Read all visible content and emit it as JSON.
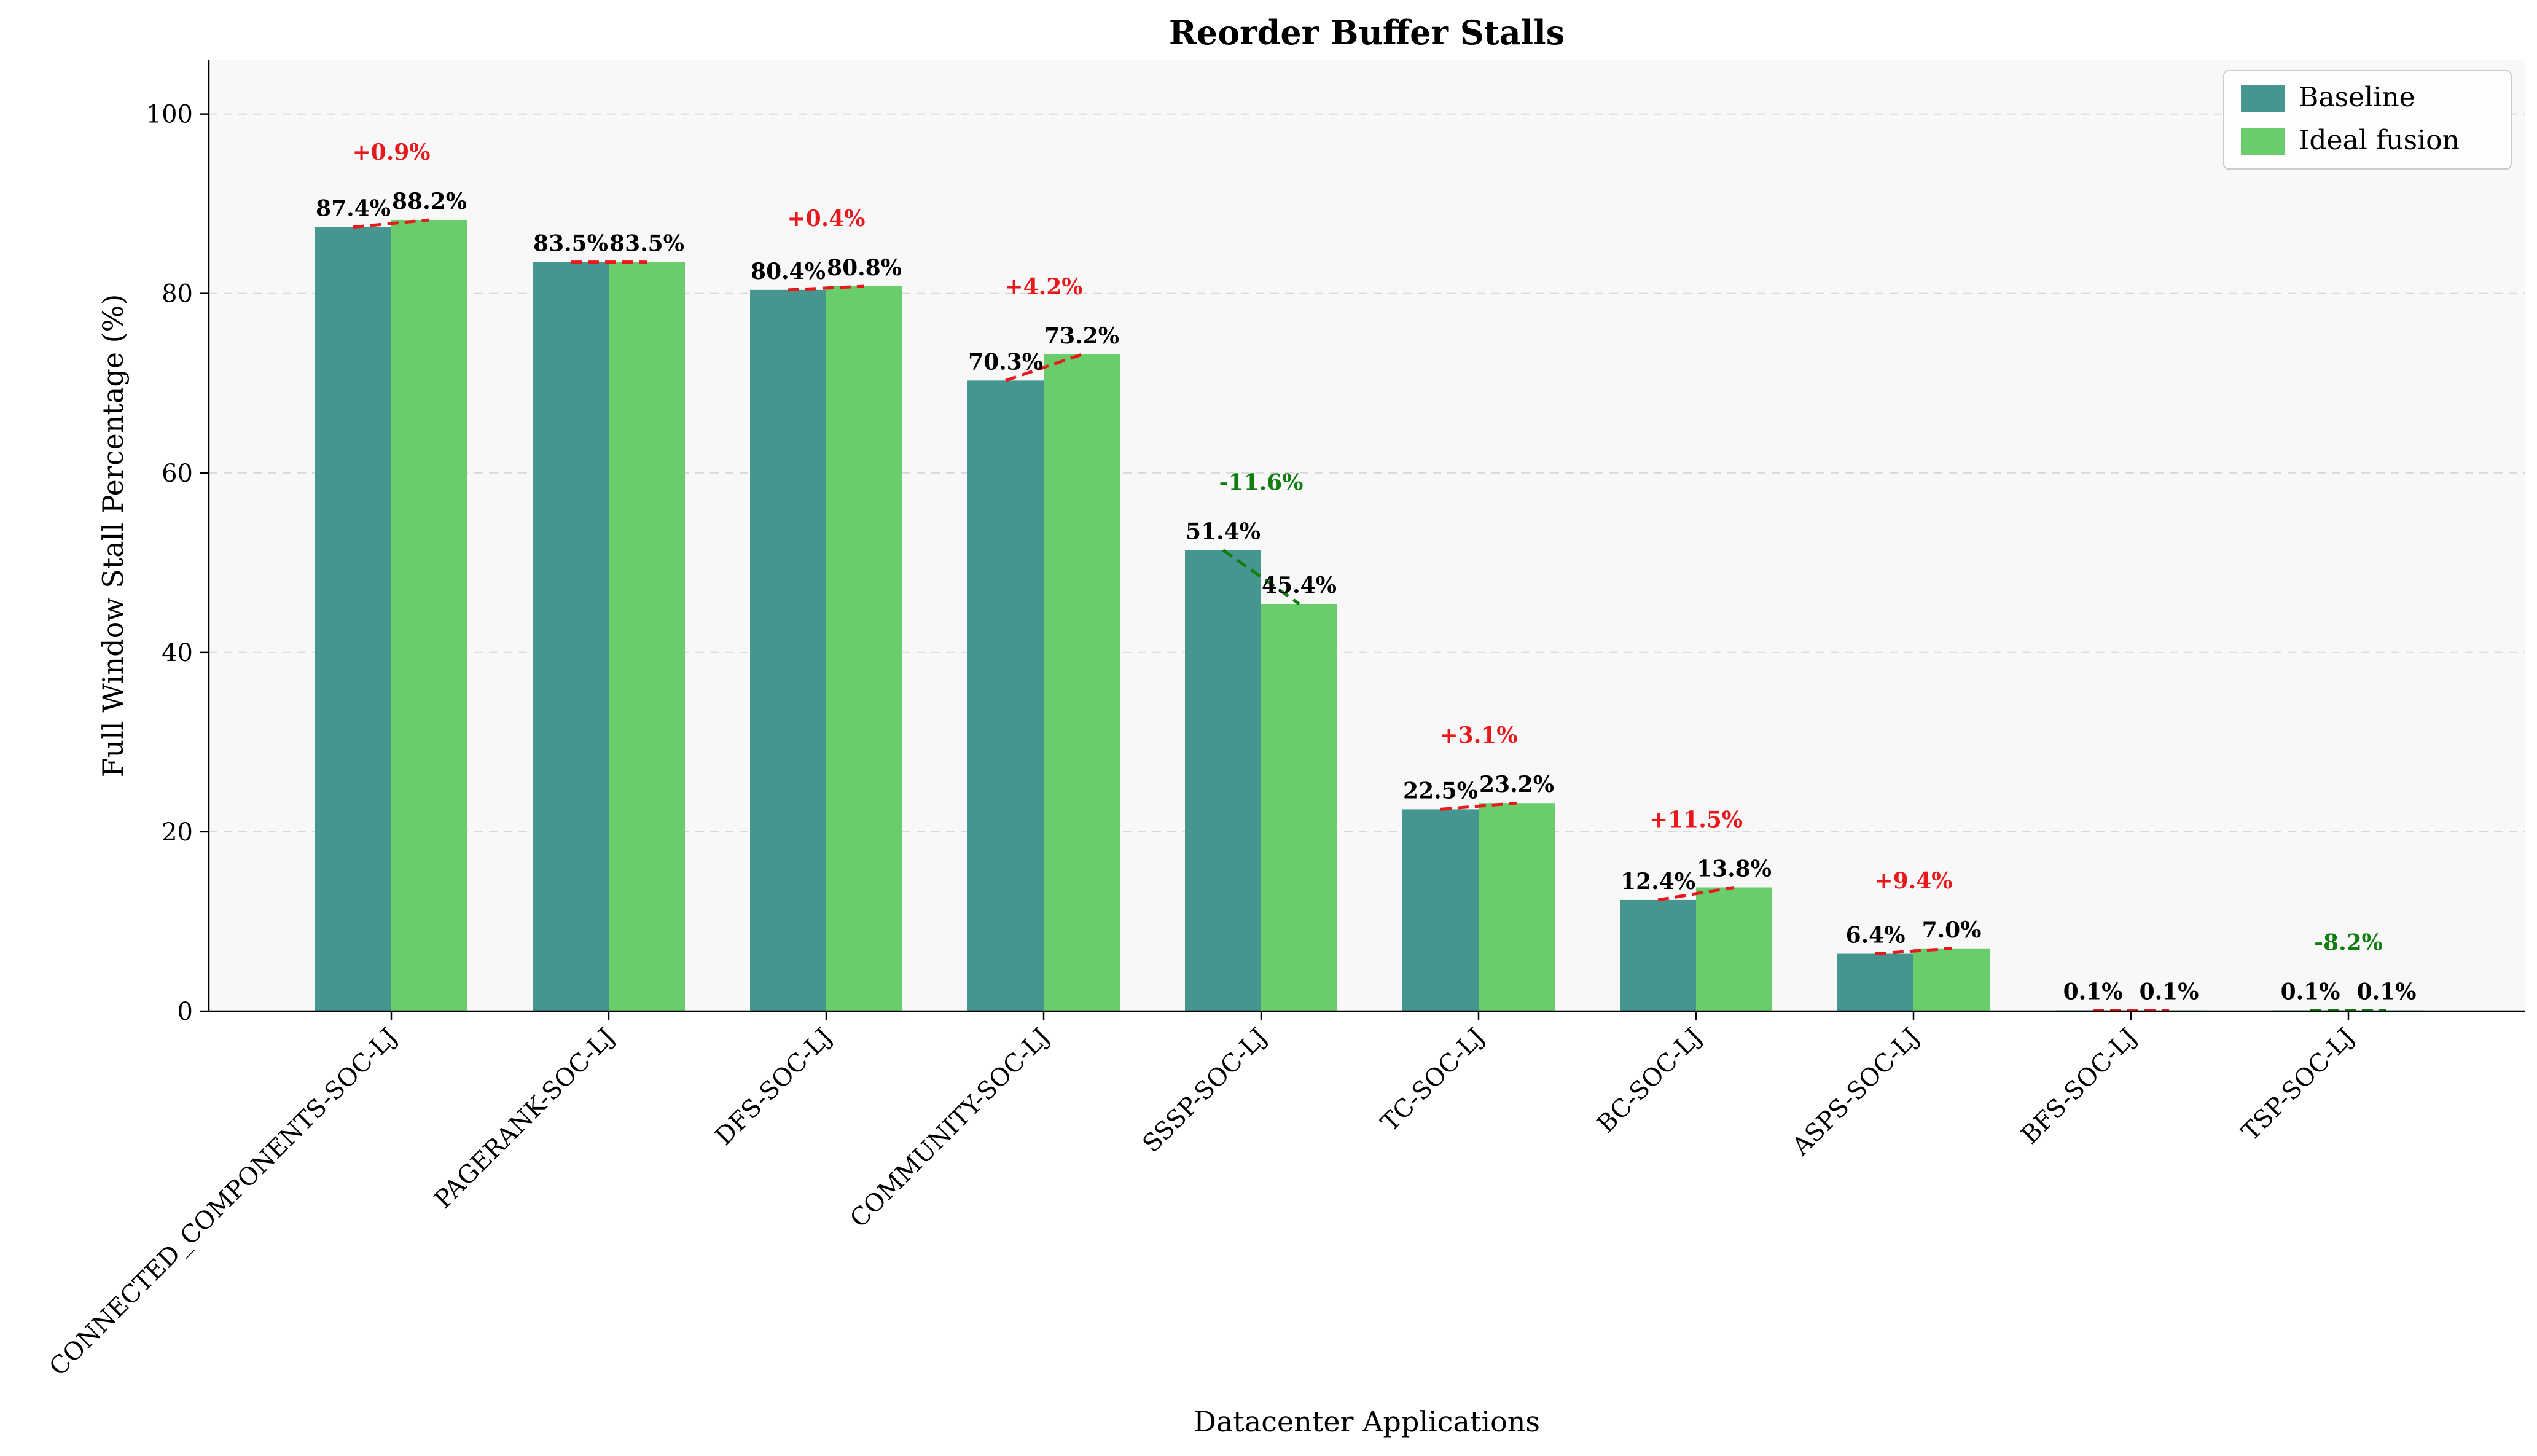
{
  "chart_data": {
    "type": "bar",
    "title": "Reorder Buffer Stalls",
    "xlabel": "Datacenter Applications",
    "ylabel": "Full Window Stall Percentage (%)",
    "ylim": [
      0,
      106
    ],
    "yticks": [
      0,
      20,
      40,
      60,
      80,
      100
    ],
    "grid": "horizontal dashed",
    "legend_position": "top-right",
    "categories": [
      "CONNECTED_COMPONENTS-SOC-LJ",
      "PAGERANK-SOC-LJ",
      "DFS-SOC-LJ",
      "COMMUNITY-SOC-LJ",
      "SSSP-SOC-LJ",
      "TC-SOC-LJ",
      "BC-SOC-LJ",
      "ASPS-SOC-LJ",
      "BFS-SOC-LJ",
      "TSP-SOC-LJ"
    ],
    "series": [
      {
        "name": "Baseline",
        "color": "#45968f",
        "values": [
          87.4,
          83.5,
          80.4,
          70.3,
          51.4,
          22.5,
          12.4,
          6.4,
          0.1,
          0.1
        ],
        "labels": [
          "87.4%",
          "83.5%",
          "80.4%",
          "70.3%",
          "51.4%",
          "22.5%",
          "12.4%",
          "6.4%",
          "0.1%",
          "0.1%"
        ]
      },
      {
        "name": "Ideal fusion",
        "color": "#69cd6b",
        "values": [
          88.2,
          83.5,
          80.8,
          73.2,
          45.4,
          23.2,
          13.8,
          7.0,
          0.1,
          0.1
        ],
        "labels": [
          "88.2%",
          "83.5%",
          "80.8%",
          "73.2%",
          "45.4%",
          "23.2%",
          "13.8%",
          "7.0%",
          "0.1%",
          "0.1%"
        ]
      }
    ],
    "change_labels": [
      "+0.9%",
      "",
      "+0.4%",
      "+4.2%",
      "-11.6%",
      "+3.1%",
      "+11.5%",
      "+9.4%",
      "",
      "-8.2%"
    ],
    "change_direction": [
      "up",
      "flat",
      "up",
      "up",
      "down",
      "up",
      "up",
      "up",
      "flat",
      "down"
    ],
    "colors": {
      "increase": "#e8191c",
      "decrease": "#117d11",
      "plot_background": "#f8f8f8",
      "grid": "#d8d8d8"
    }
  }
}
